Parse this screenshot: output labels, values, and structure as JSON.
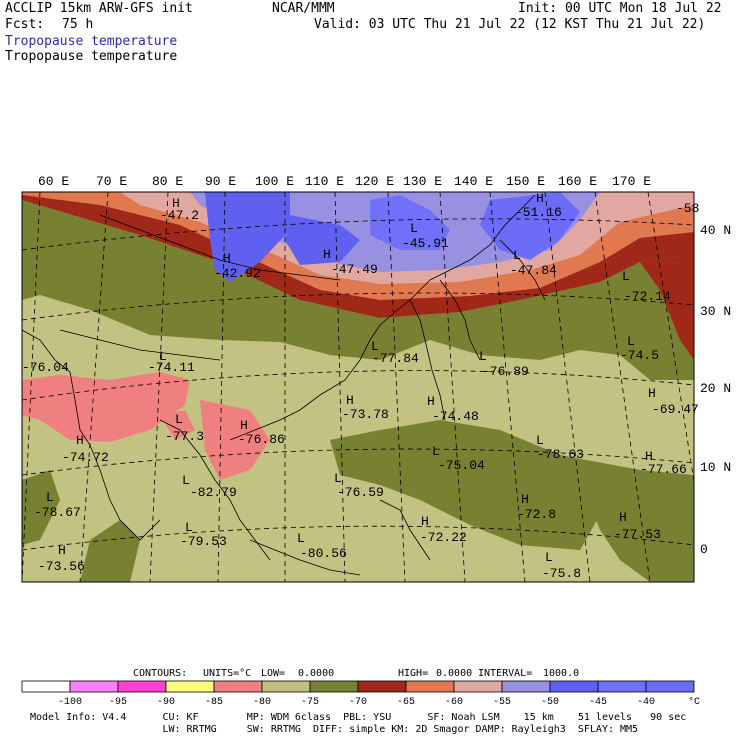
{
  "header": {
    "model": "ACCLIP 15km ARW-GFS init",
    "center": "NCAR/MMM",
    "init": "Init: 00 UTC Mon 18 Jul 22",
    "fcst_label": "Fcst:",
    "fcst_value": "75 h",
    "valid": "Valid: 03 UTC Thu 21 Jul 22 (12 KST Thu 21 Jul 22)",
    "field_title_1": "Tropopause temperature",
    "field_title_2": "Tropopause temperature"
  },
  "lon_labels": [
    "60 E",
    "70 E",
    "80 E",
    "90 E",
    "100 E",
    "110 E",
    "120 E",
    "130 E",
    "140 E",
    "150 E",
    "160 E",
    "170 E"
  ],
  "lat_labels": [
    "40 N",
    "30 N",
    "20 N",
    "10 N",
    "0"
  ],
  "contour_labels": [
    {
      "text": "-47.2",
      "pos": "nw-interior"
    },
    {
      "text": "-42.92",
      "pos": "tibet"
    },
    {
      "text": "-47.49",
      "pos": "mongolia"
    },
    {
      "text": "-45.91",
      "pos": "manchuria"
    },
    {
      "text": "-51.16",
      "pos": "sea-of-okhotsk"
    },
    {
      "text": "-47.84",
      "pos": "nw-pacific"
    },
    {
      "text": "-58",
      "pos": "ne-corner"
    },
    {
      "text": "-72.14",
      "pos": "n-pacific"
    },
    {
      "text": "-74.5",
      "pos": "e-pacific"
    },
    {
      "text": "-69.47",
      "pos": "far-east"
    },
    {
      "text": "-76.04",
      "pos": "west-edge"
    },
    {
      "text": "-74.11",
      "pos": "india-north"
    },
    {
      "text": "-77.84",
      "pos": "yellow-sea"
    },
    {
      "text": "-76.89",
      "pos": "japan-south"
    },
    {
      "text": "-73.78",
      "pos": "taiwan"
    },
    {
      "text": "-74.48",
      "pos": "philippine-sea"
    },
    {
      "text": "-77.3",
      "pos": "bay-of-bengal-north"
    },
    {
      "text": "-76.86",
      "pos": "indochina"
    },
    {
      "text": "-74.72",
      "pos": "arabian-sea"
    },
    {
      "text": "-75.04",
      "pos": "west-pacific"
    },
    {
      "text": "-78.63",
      "pos": "central-pacific"
    },
    {
      "text": "-77.66",
      "pos": "east-pacific"
    },
    {
      "text": "-82.79",
      "pos": "andaman"
    },
    {
      "text": "-76.59",
      "pos": "south-china-sea"
    },
    {
      "text": "-72.8",
      "pos": "caroline"
    },
    {
      "text": "-78.67",
      "pos": "sw-indian"
    },
    {
      "text": "-79.53",
      "pos": "sumatra"
    },
    {
      "text": "-72.22",
      "pos": "mindanao"
    },
    {
      "text": "-77.53",
      "pos": "se-pacific"
    },
    {
      "text": "-73.56",
      "pos": "sw-corner"
    },
    {
      "text": "-80.56",
      "pos": "borneo"
    },
    {
      "text": "-75.8",
      "pos": "new-guinea"
    }
  ],
  "contour_info": {
    "label": "CONTOURS:",
    "units": "UNITS=°C",
    "low_label": "LOW=",
    "low": "0.0000",
    "high_label": "HIGH=",
    "high": "0.0000",
    "interval_label": "INTERVAL=",
    "interval": "1000.0"
  },
  "colorbar": {
    "colors": [
      "#ffffff",
      "#ff80ff",
      "#ff40d0",
      "#ffff80",
      "#f08080",
      "#c0c080",
      "#788032",
      "#a02818",
      "#e07850",
      "#e0a8a0",
      "#9890e0",
      "#6060f0",
      "#7070f8",
      "#6c6cf8"
    ],
    "ticks": [
      "-100",
      "-95",
      "-90",
      "-85",
      "-80",
      "-75",
      "-70",
      "-65",
      "-60",
      "-55",
      "-50",
      "-45",
      "-40"
    ],
    "unit": "°C"
  },
  "footer": {
    "line1": "Model Info: V4.4      CU: KF        MP: WDM 6class  PBL: YSU      SF: Noah LSM    15 km    51 levels   90 sec",
    "line2": "                      LW: RRTMG     SW: RRTMG  DIFF: simple KM: 2D Smagor DAMP: Rayleigh3  SFLAY: MM5"
  }
}
